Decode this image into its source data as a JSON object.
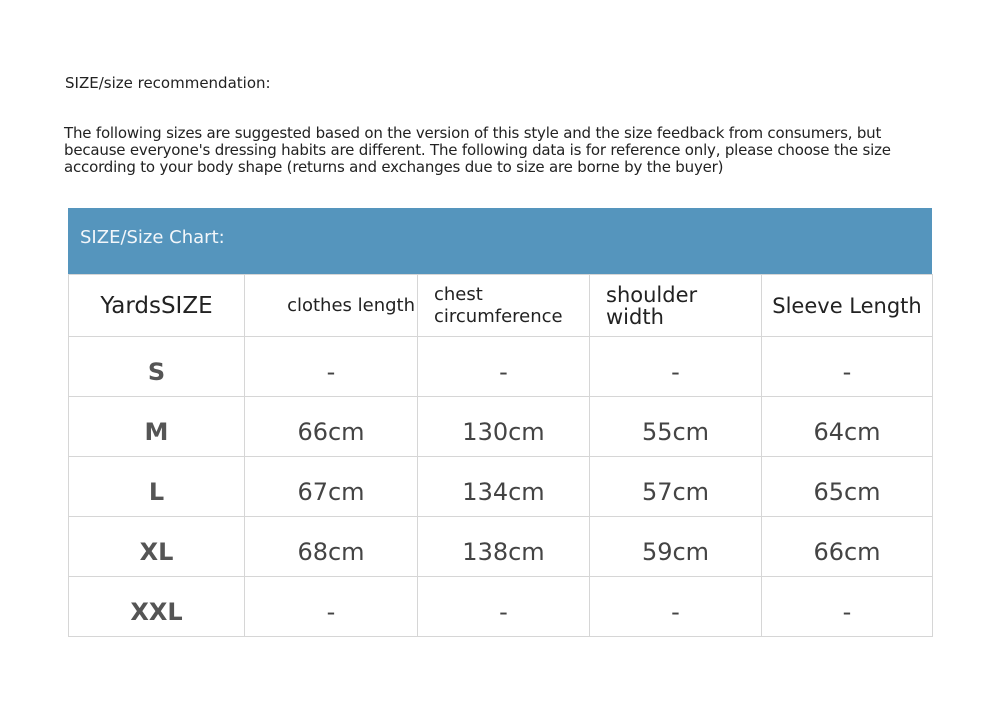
{
  "title": "SIZE/size recommendation:",
  "description": "The following sizes are suggested based on the version of this style and the size feedback from consumers, but because everyone's dressing habits are different. The following data is for reference only, please choose the size according to your body shape (returns and exchanges due to size are borne by the buyer)",
  "chart_title": "SIZE/Size Chart:",
  "header_color": "#5595bd",
  "columns": [
    "YardsSIZE",
    "clothes length",
    "chest circumference",
    "shoulder width",
    "Sleeve Length"
  ],
  "rows": [
    [
      "S",
      "-",
      "-",
      "-",
      "-"
    ],
    [
      "M",
      "66cm",
      "130cm",
      "55cm",
      "64cm"
    ],
    [
      "L",
      "67cm",
      "134cm",
      "57cm",
      "65cm"
    ],
    [
      "XL",
      "68cm",
      "138cm",
      "59cm",
      "66cm"
    ],
    [
      "XXL",
      "-",
      "-",
      "-",
      "-"
    ]
  ]
}
